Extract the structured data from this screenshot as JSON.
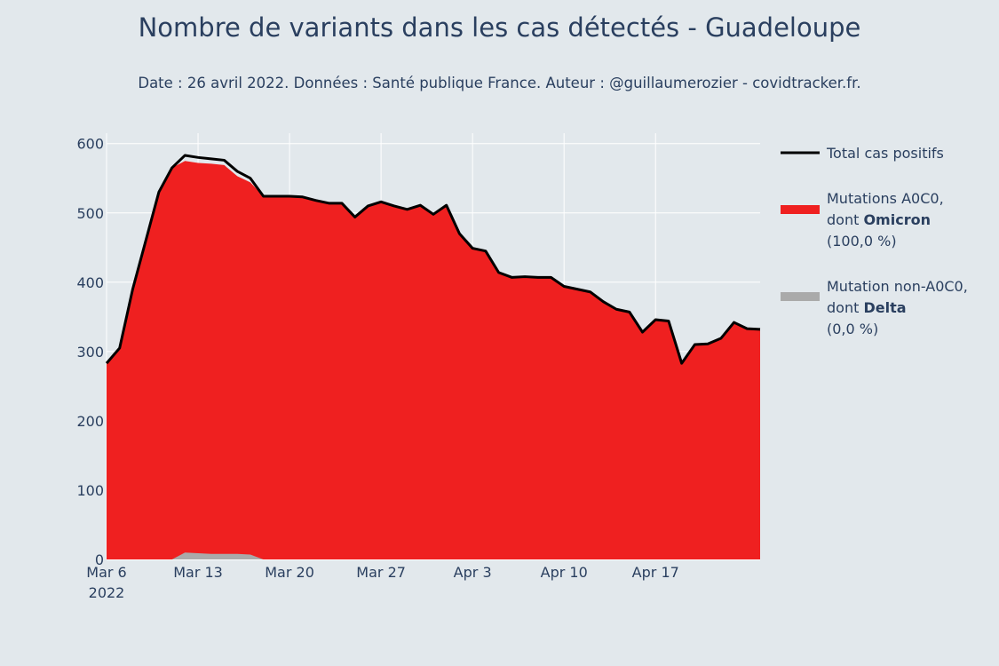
{
  "title": "Nombre de variants dans les cas détectés - Guadeloupe",
  "subtitle": "Date : 26 avril 2022. Données : Santé publique France. Auteur : @guillaumerozier - covidtracker.fr.",
  "colors": {
    "omicron": "#ef2020",
    "non_a0c0": "#aaaaaa",
    "total": "#000000",
    "grid": "#ffffff",
    "text": "#2a3f5f",
    "background": "#e2e8ec"
  },
  "legend": [
    {
      "key": "total",
      "lines": [
        {
          "parts": [
            {
              "text": "Total cas positifs",
              "bold": false
            }
          ]
        }
      ]
    },
    {
      "key": "omicron",
      "lines": [
        {
          "parts": [
            {
              "text": "Mutations A0C0,",
              "bold": false
            }
          ]
        },
        {
          "parts": [
            {
              "text": "dont ",
              "bold": false
            },
            {
              "text": "Omicron",
              "bold": true
            }
          ]
        },
        {
          "parts": [
            {
              "text": " (100,0 %)",
              "bold": false
            }
          ]
        }
      ]
    },
    {
      "key": "non_a0c0",
      "lines": [
        {
          "parts": [
            {
              "text": "Mutation non-A0C0,",
              "bold": false
            }
          ]
        },
        {
          "parts": [
            {
              "text": "dont ",
              "bold": false
            },
            {
              "text": "Delta",
              "bold": true
            }
          ]
        },
        {
          "parts": [
            {
              "text": " (0,0 %)",
              "bold": false
            }
          ]
        }
      ]
    }
  ],
  "chart_data": {
    "type": "area",
    "x": [
      "2022-03-06",
      "2022-03-07",
      "2022-03-08",
      "2022-03-09",
      "2022-03-10",
      "2022-03-11",
      "2022-03-12",
      "2022-03-13",
      "2022-03-14",
      "2022-03-15",
      "2022-03-16",
      "2022-03-17",
      "2022-03-18",
      "2022-03-19",
      "2022-03-20",
      "2022-03-21",
      "2022-03-22",
      "2022-03-23",
      "2022-03-24",
      "2022-03-25",
      "2022-03-26",
      "2022-03-27",
      "2022-03-28",
      "2022-03-29",
      "2022-03-30",
      "2022-03-31",
      "2022-04-01",
      "2022-04-02",
      "2022-04-03",
      "2022-04-04",
      "2022-04-05",
      "2022-04-06",
      "2022-04-07",
      "2022-04-08",
      "2022-04-09",
      "2022-04-10",
      "2022-04-11",
      "2022-04-12",
      "2022-04-13",
      "2022-04-14",
      "2022-04-15",
      "2022-04-16",
      "2022-04-17",
      "2022-04-18",
      "2022-04-19",
      "2022-04-20",
      "2022-04-21",
      "2022-04-22",
      "2022-04-23",
      "2022-04-24",
      "2022-04-25"
    ],
    "series": [
      {
        "name": "Total cas positifs",
        "type": "line",
        "values": [
          283,
          305,
          390,
          460,
          530,
          565,
          583,
          580,
          578,
          576,
          560,
          550,
          524,
          524,
          524,
          523,
          518,
          514,
          514,
          494,
          510,
          516,
          510,
          505,
          511,
          498,
          511,
          470,
          449,
          445,
          414,
          407,
          408,
          407,
          407,
          394,
          390,
          386,
          372,
          361,
          357,
          328,
          346,
          344,
          283,
          310,
          311,
          319,
          342,
          333,
          332
        ]
      },
      {
        "name": "Mutations A0C0, dont Omicron (100,0 %)",
        "type": "area",
        "values": [
          283,
          305,
          390,
          460,
          530,
          565,
          575,
          572,
          571,
          569,
          553,
          544,
          524,
          524,
          524,
          523,
          518,
          514,
          514,
          494,
          510,
          516,
          510,
          505,
          511,
          498,
          511,
          470,
          449,
          445,
          414,
          407,
          408,
          407,
          407,
          394,
          390,
          386,
          372,
          361,
          357,
          328,
          346,
          344,
          283,
          310,
          311,
          319,
          342,
          333,
          332
        ]
      },
      {
        "name": "Mutation non-A0C0, dont Delta (0,0 %)",
        "type": "area",
        "values": [
          0,
          0,
          0,
          0,
          0,
          0,
          10,
          9,
          8,
          8,
          8,
          7,
          0,
          0,
          0,
          0,
          0,
          0,
          0,
          0,
          0,
          0,
          0,
          0,
          0,
          0,
          0,
          0,
          0,
          0,
          0,
          0,
          0,
          0,
          0,
          0,
          0,
          0,
          0,
          0,
          0,
          0,
          0,
          0,
          0,
          0,
          0,
          0,
          0,
          0,
          0
        ]
      }
    ],
    "x_ticks": [
      {
        "date": "2022-03-06",
        "label": "Mar 6",
        "sublabel": "2022"
      },
      {
        "date": "2022-03-13",
        "label": "Mar 13"
      },
      {
        "date": "2022-03-20",
        "label": "Mar 20"
      },
      {
        "date": "2022-03-27",
        "label": "Mar 27"
      },
      {
        "date": "2022-04-03",
        "label": "Apr 3"
      },
      {
        "date": "2022-04-10",
        "label": "Apr 10"
      },
      {
        "date": "2022-04-17",
        "label": "Apr 17"
      }
    ],
    "y_ticks": [
      0,
      100,
      200,
      300,
      400,
      500,
      600
    ],
    "ylim": [
      0,
      615
    ],
    "xlim": [
      "2022-03-06",
      "2022-04-25"
    ],
    "grid": true,
    "legend_position": "right",
    "title": "Nombre de variants dans les cas détectés - Guadeloupe",
    "subtitle": "Date : 26 avril 2022. Données : Santé publique France. Auteur : @guillaumerozier - covidtracker.fr."
  }
}
